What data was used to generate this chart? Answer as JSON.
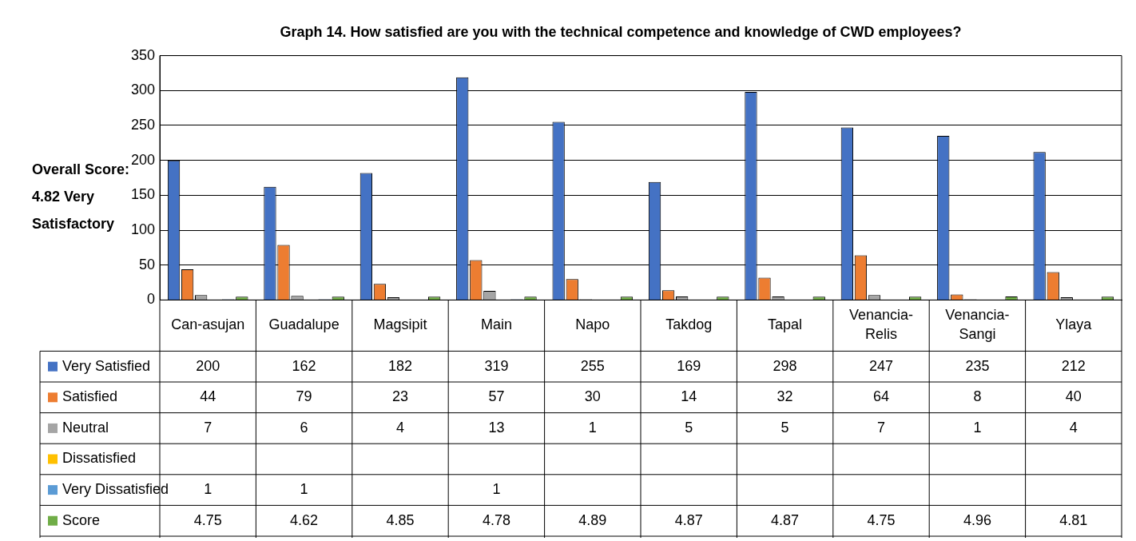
{
  "chart_data": {
    "type": "bar",
    "title": "Graph 14. How satisfied are you with the technical competence and knowledge of CWD employees?",
    "categories": [
      "Can-asujan",
      "Guadalupe",
      "Magsipit",
      "Main",
      "Napo",
      "Takdog",
      "Tapal",
      "Venancia-Relis",
      "Venancia-Sangi",
      "Ylaya"
    ],
    "series": [
      {
        "name": "Very Satisfied",
        "color": "#4472c4",
        "values": [
          200,
          162,
          182,
          319,
          255,
          169,
          298,
          247,
          235,
          212
        ]
      },
      {
        "name": "Satisfied",
        "color": "#ed7d31",
        "values": [
          44,
          79,
          23,
          57,
          30,
          14,
          32,
          64,
          8,
          40
        ]
      },
      {
        "name": "Neutral",
        "color": "#a5a5a5",
        "values": [
          7,
          6,
          4,
          13,
          1,
          5,
          5,
          7,
          1,
          4
        ]
      },
      {
        "name": "Dissatisfied",
        "color": "#ffc000",
        "values": [
          null,
          null,
          null,
          null,
          null,
          null,
          null,
          null,
          null,
          null
        ]
      },
      {
        "name": "Very Dissatisfied",
        "color": "#5b9bd5",
        "values": [
          1,
          1,
          null,
          1,
          null,
          null,
          null,
          null,
          null,
          null
        ]
      },
      {
        "name": "Score",
        "color": "#70ad47",
        "values": [
          4.75,
          4.62,
          4.85,
          4.78,
          4.89,
          4.87,
          4.87,
          4.75,
          4.96,
          4.81
        ]
      }
    ],
    "ylim": [
      0,
      350
    ],
    "yticks": [
      0,
      50,
      100,
      150,
      200,
      250,
      300,
      350
    ],
    "grid": "y",
    "data_labels": true,
    "legend": "bottom",
    "annotations": [
      "Overall Score: 4.82 Very Satisfactory"
    ]
  }
}
